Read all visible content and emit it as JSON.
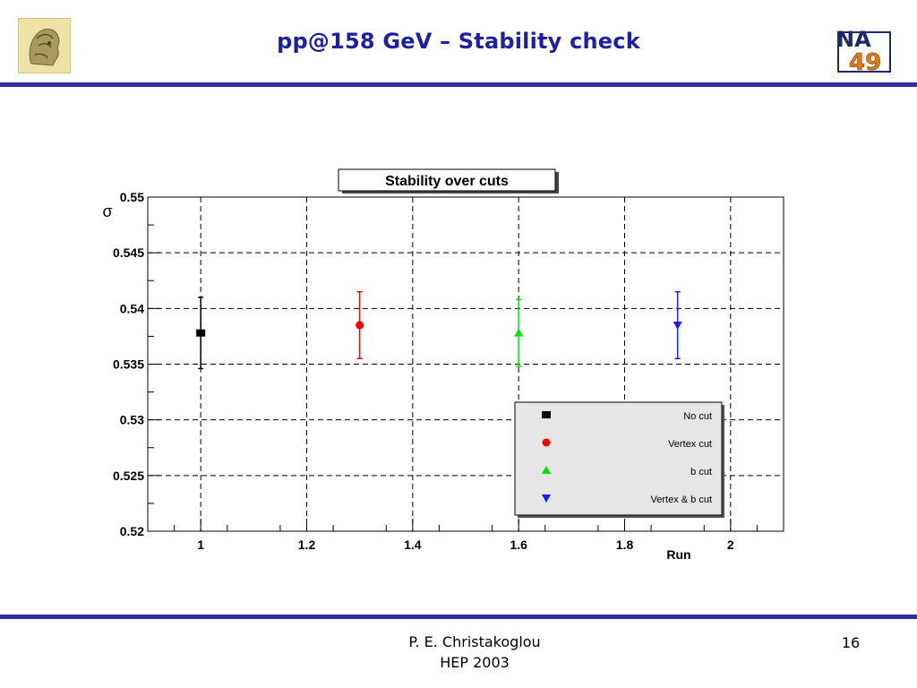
{
  "slide": {
    "title": "pp@158 GeV – Stability check",
    "footer_author": "P. E. Christakoglou",
    "footer_event": "HEP 2003",
    "page_number": "16"
  },
  "logos": {
    "left": "athena-head-icon",
    "right_text_top": "NA",
    "right_text_bottom": "49"
  },
  "colors": {
    "title": "#1c1fa8",
    "rule": "#2c2f9c",
    "legend_bg": "#e6e6e6"
  },
  "chart_data": {
    "type": "scatter",
    "title": "Stability over cuts",
    "xlabel": "Run",
    "ylabel": "σ",
    "xlim": [
      0.9,
      2.1
    ],
    "ylim": [
      0.52,
      0.55
    ],
    "x_ticks": [
      "1",
      "1.2",
      "1.4",
      "1.6",
      "1.8",
      "2"
    ],
    "y_ticks": [
      "0.52",
      "0.525",
      "0.53",
      "0.535",
      "0.54",
      "0.545",
      "0.55"
    ],
    "grid": true,
    "legend_position": "bottom-right",
    "series": [
      {
        "name": "No cut",
        "x": 1.0,
        "y": 0.5378,
        "err": 0.0032,
        "marker": "square",
        "color": "#000000"
      },
      {
        "name": "Vertex cut",
        "x": 1.3,
        "y": 0.5385,
        "err": 0.003,
        "marker": "circle",
        "color": "#ff0000"
      },
      {
        "name": "b cut",
        "x": 1.6,
        "y": 0.5378,
        "err": 0.003,
        "marker": "triangle-up",
        "color": "#00e600"
      },
      {
        "name": "Vertex & b cut",
        "x": 1.9,
        "y": 0.5385,
        "err": 0.003,
        "marker": "triangle-down",
        "color": "#1a1aff"
      }
    ]
  }
}
